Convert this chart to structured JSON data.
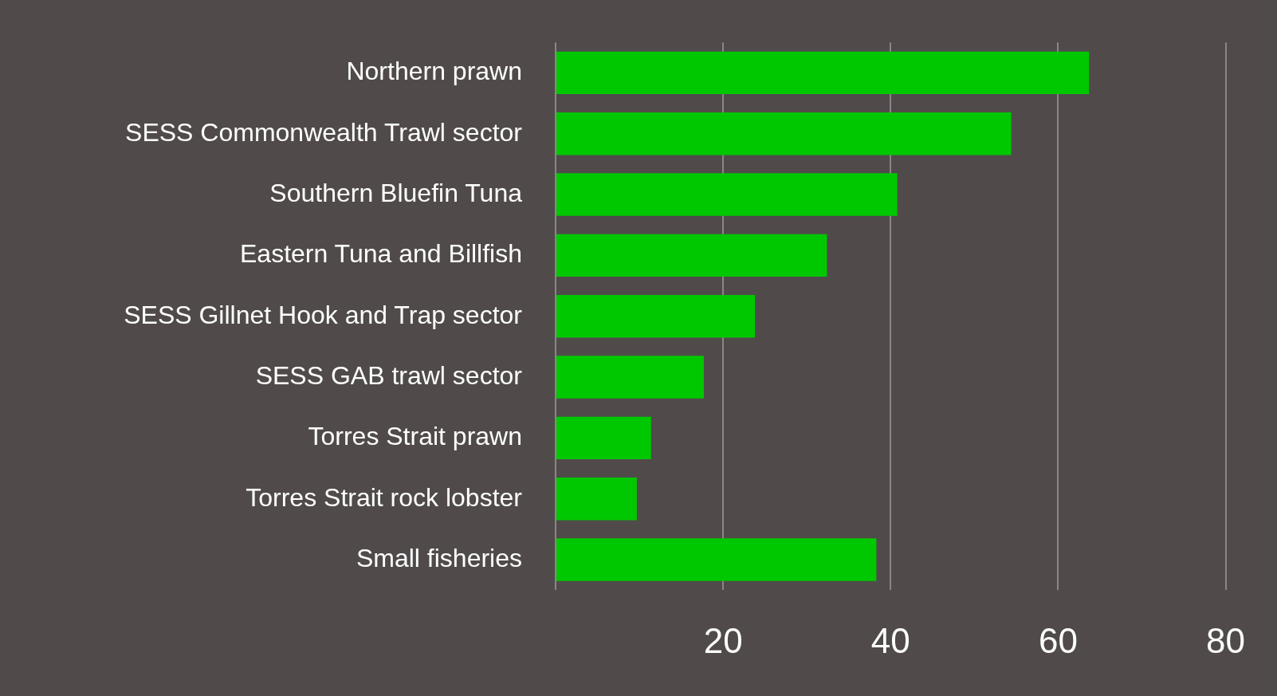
{
  "chart_data": {
    "type": "bar",
    "orientation": "horizontal",
    "categories": [
      "Northern prawn",
      "SESS Commonwealth Trawl sector",
      "Southern Bluefin Tuna",
      "Eastern Tuna and Billfish",
      "SESS Gillnet Hook and Trap sector",
      "SESS GAB trawl sector",
      "Torres Strait prawn",
      "Torres Strait rock lobster",
      "Small fisheries"
    ],
    "values": [
      63.7,
      54.4,
      40.8,
      32.4,
      23.8,
      17.7,
      11.4,
      9.7,
      38.3
    ],
    "color": "#00c800",
    "xlim": [
      0,
      80
    ],
    "xticks": [
      {
        "value": 0,
        "label": null
      },
      20,
      40,
      60,
      80
    ],
    "grid": "x",
    "legend": false
  }
}
